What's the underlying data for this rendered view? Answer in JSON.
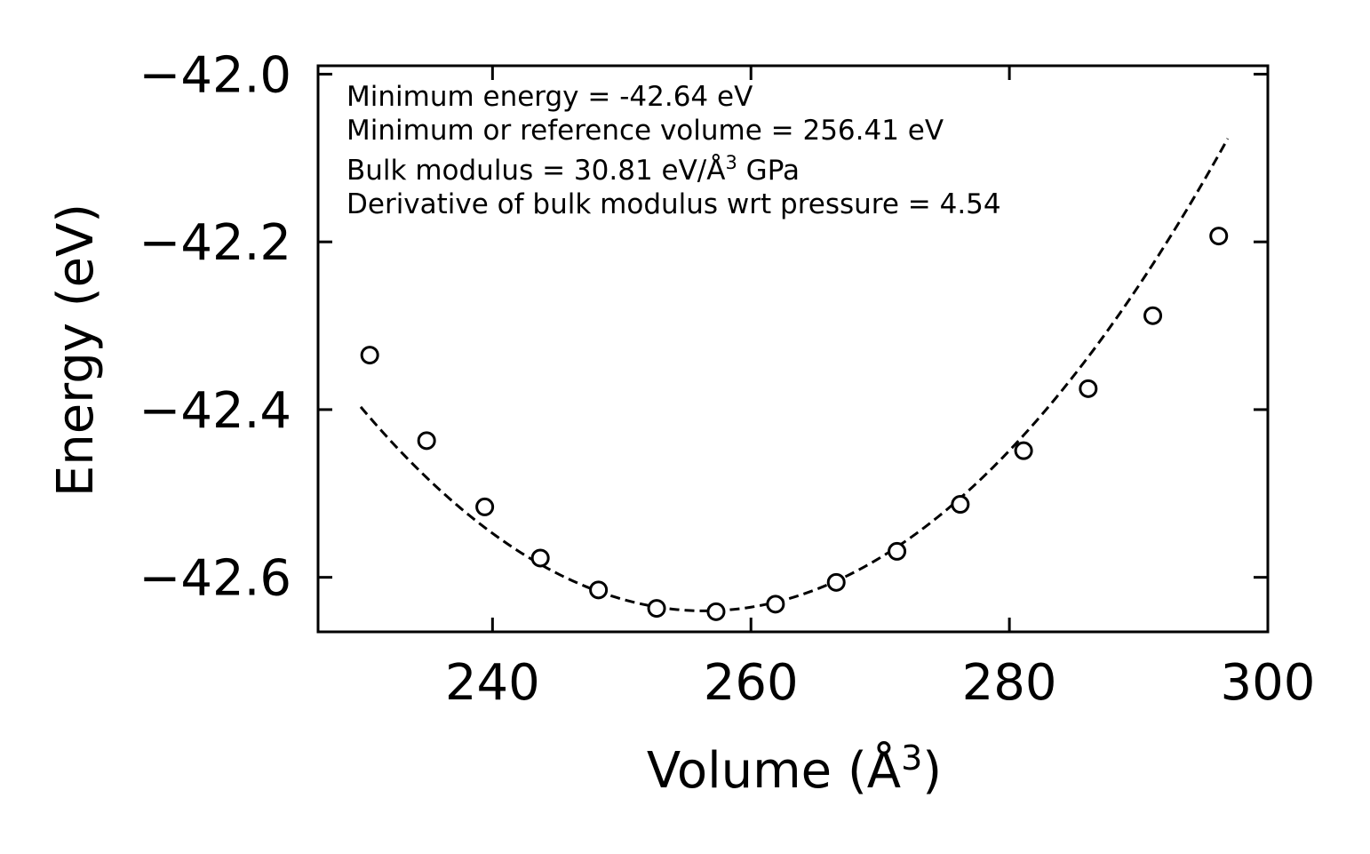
{
  "chart_data": {
    "type": "scatter",
    "title": "",
    "xlabel": "Volume (Å",
    "xlabel_sup": "3",
    "xlabel_close": ")",
    "ylabel": "Energy (eV)",
    "xlim": [
      226.5,
      300
    ],
    "ylim": [
      -42.665,
      -41.99
    ],
    "x_ticks": [
      240,
      260,
      280,
      300
    ],
    "x_tick_labels": [
      "240",
      "260",
      "280",
      "300"
    ],
    "y_ticks": [
      -42.0,
      -42.2,
      -42.4,
      -42.6
    ],
    "y_tick_labels": [
      "−42.0",
      "−42.2",
      "−42.4",
      "−42.6"
    ],
    "series": [
      {
        "name": "data",
        "style": "open-circle",
        "color": "#000000",
        "x": [
          230.5,
          234.9,
          239.4,
          243.7,
          248.2,
          252.7,
          257.3,
          261.9,
          266.6,
          271.3,
          276.2,
          281.1,
          286.1,
          291.1,
          296.2
        ],
        "y": [
          -42.335,
          -42.437,
          -42.516,
          -42.577,
          -42.615,
          -42.637,
          -42.641,
          -42.632,
          -42.606,
          -42.569,
          -42.513,
          -42.449,
          -42.375,
          -42.288,
          -42.193
        ]
      },
      {
        "name": "fit",
        "style": "dashed-line",
        "color": "#000000",
        "fit": {
          "model": "parabola",
          "e0": -42.64,
          "v0": 256.41,
          "curvature": 0.0003435,
          "x_range": [
            229.8,
            296.9
          ]
        }
      }
    ],
    "annotations": [
      "Minimum energy = -42.64 eV",
      "Minimum or reference volume = 256.41 eV",
      "Bulk modulus = 30.81 eV/Å",
      "3",
      " GPa",
      "Derivative of bulk modulus wrt pressure = 4.54"
    ]
  }
}
